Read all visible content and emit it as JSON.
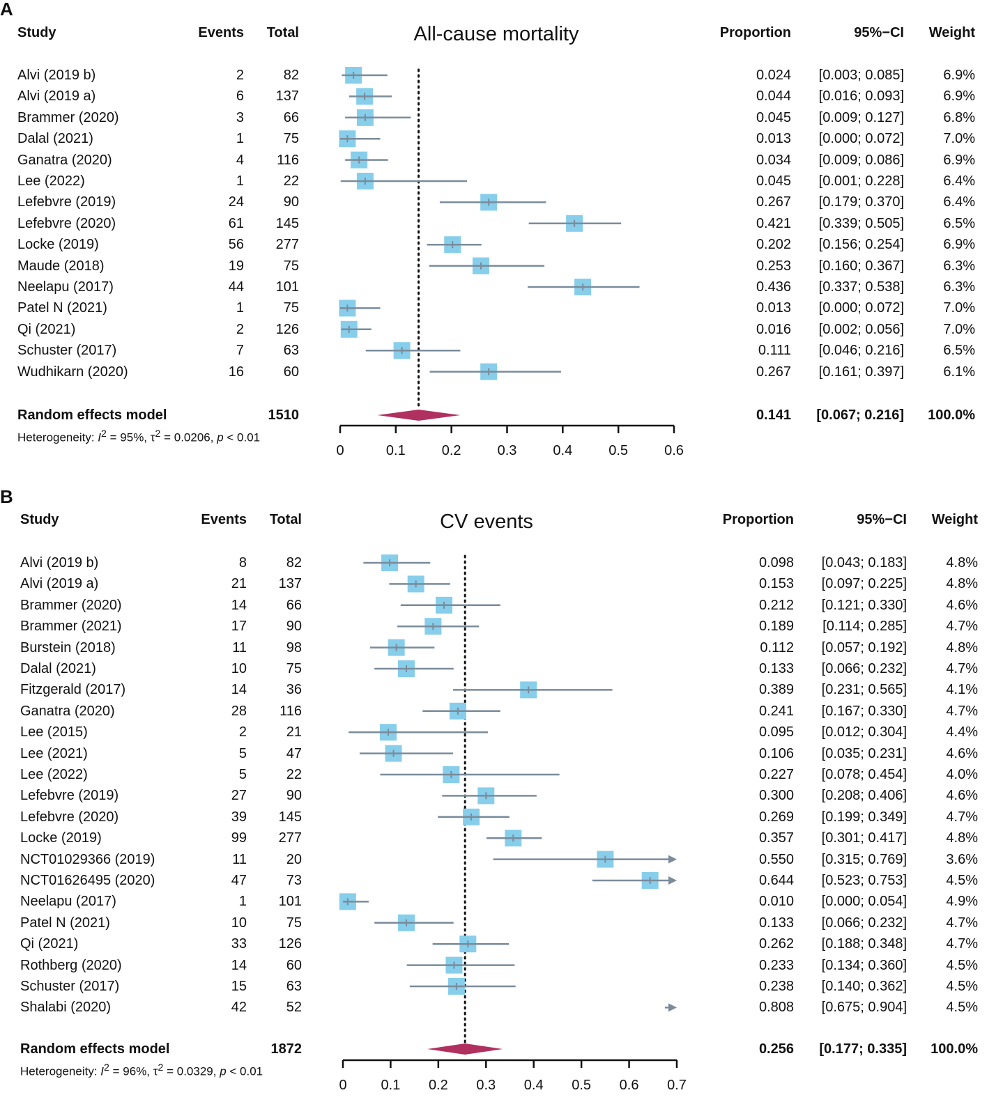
{
  "chart_data": [
    {
      "panel_label": "A",
      "type": "forest",
      "title": "All-cause mortality",
      "headers": {
        "study": "Study",
        "events": "Events",
        "total": "Total",
        "proportion": "Proportion",
        "ci": "95%−CI",
        "weight": "Weight"
      },
      "xlim": [
        0,
        0.6
      ],
      "ticks": [
        0,
        0.1,
        0.2,
        0.3,
        0.4,
        0.5,
        0.6
      ],
      "tick_labels": [
        "0",
        "0.1",
        "0.2",
        "0.3",
        "0.4",
        "0.5",
        "0.6"
      ],
      "studies": [
        {
          "name": "Alvi (2019 b)",
          "events": "2",
          "total": "82",
          "proportion": 0.024,
          "lower": 0.003,
          "upper": 0.085,
          "prop_text": "0.024",
          "ci_text": "[0.003; 0.085]",
          "weight": "6.9%"
        },
        {
          "name": "Alvi (2019 a)",
          "events": "6",
          "total": "137",
          "proportion": 0.044,
          "lower": 0.016,
          "upper": 0.093,
          "prop_text": "0.044",
          "ci_text": "[0.016; 0.093]",
          "weight": "6.9%"
        },
        {
          "name": "Brammer (2020)",
          "events": "3",
          "total": "66",
          "proportion": 0.045,
          "lower": 0.009,
          "upper": 0.127,
          "prop_text": "0.045",
          "ci_text": "[0.009; 0.127]",
          "weight": "6.8%"
        },
        {
          "name": "Dalal (2021)",
          "events": "1",
          "total": "75",
          "proportion": 0.013,
          "lower": 0.0,
          "upper": 0.072,
          "prop_text": "0.013",
          "ci_text": "[0.000; 0.072]",
          "weight": "7.0%"
        },
        {
          "name": "Ganatra (2020)",
          "events": "4",
          "total": "116",
          "proportion": 0.034,
          "lower": 0.009,
          "upper": 0.086,
          "prop_text": "0.034",
          "ci_text": "[0.009; 0.086]",
          "weight": "6.9%"
        },
        {
          "name": "Lee (2022)",
          "events": "1",
          "total": "22",
          "proportion": 0.045,
          "lower": 0.001,
          "upper": 0.228,
          "prop_text": "0.045",
          "ci_text": "[0.001; 0.228]",
          "weight": "6.4%"
        },
        {
          "name": "Lefebvre (2019)",
          "events": "24",
          "total": "90",
          "proportion": 0.267,
          "lower": 0.179,
          "upper": 0.37,
          "prop_text": "0.267",
          "ci_text": "[0.179; 0.370]",
          "weight": "6.4%"
        },
        {
          "name": "Lefebvre (2020)",
          "events": "61",
          "total": "145",
          "proportion": 0.421,
          "lower": 0.339,
          "upper": 0.505,
          "prop_text": "0.421",
          "ci_text": "[0.339; 0.505]",
          "weight": "6.5%"
        },
        {
          "name": "Locke (2019)",
          "events": "56",
          "total": "277",
          "proportion": 0.202,
          "lower": 0.156,
          "upper": 0.254,
          "prop_text": "0.202",
          "ci_text": "[0.156; 0.254]",
          "weight": "6.9%"
        },
        {
          "name": "Maude (2018)",
          "events": "19",
          "total": "75",
          "proportion": 0.253,
          "lower": 0.16,
          "upper": 0.367,
          "prop_text": "0.253",
          "ci_text": "[0.160; 0.367]",
          "weight": "6.3%"
        },
        {
          "name": "Neelapu (2017)",
          "events": "44",
          "total": "101",
          "proportion": 0.436,
          "lower": 0.337,
          "upper": 0.538,
          "prop_text": "0.436",
          "ci_text": "[0.337; 0.538]",
          "weight": "6.3%"
        },
        {
          "name": "Patel N (2021)",
          "events": "1",
          "total": "75",
          "proportion": 0.013,
          "lower": 0.0,
          "upper": 0.072,
          "prop_text": "0.013",
          "ci_text": "[0.000; 0.072]",
          "weight": "7.0%"
        },
        {
          "name": "Qi (2021)",
          "events": "2",
          "total": "126",
          "proportion": 0.016,
          "lower": 0.002,
          "upper": 0.056,
          "prop_text": "0.016",
          "ci_text": "[0.002; 0.056]",
          "weight": "7.0%"
        },
        {
          "name": "Schuster (2017)",
          "events": "7",
          "total": "63",
          "proportion": 0.111,
          "lower": 0.046,
          "upper": 0.216,
          "prop_text": "0.111",
          "ci_text": "[0.046; 0.216]",
          "weight": "6.5%"
        },
        {
          "name": "Wudhikarn (2020)",
          "events": "16",
          "total": "60",
          "proportion": 0.267,
          "lower": 0.161,
          "upper": 0.397,
          "prop_text": "0.267",
          "ci_text": "[0.161; 0.397]",
          "weight": "6.1%"
        }
      ],
      "pooled": {
        "name": "Random effects model",
        "total": "1510",
        "proportion": 0.141,
        "lower": 0.067,
        "upper": 0.216,
        "prop_text": "0.141",
        "ci_text": "[0.067; 0.216]",
        "weight": "100.0%"
      },
      "heterogeneity": {
        "prefix": "Heterogeneity: ",
        "i2_label": "I",
        "i2_value": " = 95%, ",
        "tau_label": "τ",
        "tau_value": " = 0.0206, ",
        "p_label": "p",
        "p_value": " < 0.01",
        "sup": "2"
      }
    },
    {
      "panel_label": "B",
      "type": "forest",
      "title": "CV events",
      "headers": {
        "study": "Study",
        "events": "Events",
        "total": "Total",
        "proportion": "Proportion",
        "ci": "95%−CI",
        "weight": "Weight"
      },
      "xlim": [
        0,
        0.7
      ],
      "ticks": [
        0,
        0.1,
        0.2,
        0.3,
        0.4,
        0.5,
        0.6,
        0.7
      ],
      "tick_labels": [
        "0",
        "0.1",
        "0.2",
        "0.3",
        "0.4",
        "0.5",
        "0.6",
        "0.7"
      ],
      "studies": [
        {
          "name": "Alvi (2019 b)",
          "events": "8",
          "total": "82",
          "proportion": 0.098,
          "lower": 0.043,
          "upper": 0.183,
          "prop_text": "0.098",
          "ci_text": "[0.043; 0.183]",
          "weight": "4.8%"
        },
        {
          "name": "Alvi (2019 a)",
          "events": "21",
          "total": "137",
          "proportion": 0.153,
          "lower": 0.097,
          "upper": 0.225,
          "prop_text": "0.153",
          "ci_text": "[0.097; 0.225]",
          "weight": "4.8%"
        },
        {
          "name": "Brammer (2020)",
          "events": "14",
          "total": "66",
          "proportion": 0.212,
          "lower": 0.121,
          "upper": 0.33,
          "prop_text": "0.212",
          "ci_text": "[0.121; 0.330]",
          "weight": "4.6%"
        },
        {
          "name": "Brammer (2021)",
          "events": "17",
          "total": "90",
          "proportion": 0.189,
          "lower": 0.114,
          "upper": 0.285,
          "prop_text": "0.189",
          "ci_text": "[0.114; 0.285]",
          "weight": "4.7%"
        },
        {
          "name": "Burstein (2018)",
          "events": "11",
          "total": "98",
          "proportion": 0.112,
          "lower": 0.057,
          "upper": 0.192,
          "prop_text": "0.112",
          "ci_text": "[0.057; 0.192]",
          "weight": "4.8%"
        },
        {
          "name": "Dalal (2021)",
          "events": "10",
          "total": "75",
          "proportion": 0.133,
          "lower": 0.066,
          "upper": 0.232,
          "prop_text": "0.133",
          "ci_text": "[0.066; 0.232]",
          "weight": "4.7%"
        },
        {
          "name": "Fitzgerald (2017)",
          "events": "14",
          "total": "36",
          "proportion": 0.389,
          "lower": 0.231,
          "upper": 0.565,
          "prop_text": "0.389",
          "ci_text": "[0.231; 0.565]",
          "weight": "4.1%"
        },
        {
          "name": "Ganatra (2020)",
          "events": "28",
          "total": "116",
          "proportion": 0.241,
          "lower": 0.167,
          "upper": 0.33,
          "prop_text": "0.241",
          "ci_text": "[0.167; 0.330]",
          "weight": "4.7%"
        },
        {
          "name": "Lee (2015)",
          "events": "2",
          "total": "21",
          "proportion": 0.095,
          "lower": 0.012,
          "upper": 0.304,
          "prop_text": "0.095",
          "ci_text": "[0.012; 0.304]",
          "weight": "4.4%"
        },
        {
          "name": "Lee (2021)",
          "events": "5",
          "total": "47",
          "proportion": 0.106,
          "lower": 0.035,
          "upper": 0.231,
          "prop_text": "0.106",
          "ci_text": "[0.035; 0.231]",
          "weight": "4.6%"
        },
        {
          "name": "Lee (2022)",
          "events": "5",
          "total": "22",
          "proportion": 0.227,
          "lower": 0.078,
          "upper": 0.454,
          "prop_text": "0.227",
          "ci_text": "[0.078; 0.454]",
          "weight": "4.0%"
        },
        {
          "name": "Lefebvre (2019)",
          "events": "27",
          "total": "90",
          "proportion": 0.3,
          "lower": 0.208,
          "upper": 0.406,
          "prop_text": "0.300",
          "ci_text": "[0.208; 0.406]",
          "weight": "4.6%"
        },
        {
          "name": "Lefebvre (2020)",
          "events": "39",
          "total": "145",
          "proportion": 0.269,
          "lower": 0.199,
          "upper": 0.349,
          "prop_text": "0.269",
          "ci_text": "[0.199; 0.349]",
          "weight": "4.7%"
        },
        {
          "name": "Locke (2019)",
          "events": "99",
          "total": "277",
          "proportion": 0.357,
          "lower": 0.301,
          "upper": 0.417,
          "prop_text": "0.357",
          "ci_text": "[0.301; 0.417]",
          "weight": "4.8%"
        },
        {
          "name": "NCT01029366 (2019)",
          "events": "11",
          "total": "20",
          "proportion": 0.55,
          "lower": 0.315,
          "upper": 0.769,
          "prop_text": "0.550",
          "ci_text": "[0.315; 0.769]",
          "weight": "3.6%"
        },
        {
          "name": "NCT01626495 (2020)",
          "events": "47",
          "total": "73",
          "proportion": 0.644,
          "lower": 0.523,
          "upper": 0.753,
          "prop_text": "0.644",
          "ci_text": "[0.523; 0.753]",
          "weight": "4.5%"
        },
        {
          "name": "Neelapu (2017)",
          "events": "1",
          "total": "101",
          "proportion": 0.01,
          "lower": 0.0,
          "upper": 0.054,
          "prop_text": "0.010",
          "ci_text": "[0.000; 0.054]",
          "weight": "4.9%"
        },
        {
          "name": "Patel N (2021)",
          "events": "10",
          "total": "75",
          "proportion": 0.133,
          "lower": 0.066,
          "upper": 0.232,
          "prop_text": "0.133",
          "ci_text": "[0.066; 0.232]",
          "weight": "4.7%"
        },
        {
          "name": "Qi (2021)",
          "events": "33",
          "total": "126",
          "proportion": 0.262,
          "lower": 0.188,
          "upper": 0.348,
          "prop_text": "0.262",
          "ci_text": "[0.188; 0.348]",
          "weight": "4.7%"
        },
        {
          "name": "Rothberg (2020)",
          "events": "14",
          "total": "60",
          "proportion": 0.233,
          "lower": 0.134,
          "upper": 0.36,
          "prop_text": "0.233",
          "ci_text": "[0.134; 0.360]",
          "weight": "4.5%"
        },
        {
          "name": "Schuster (2017)",
          "events": "15",
          "total": "63",
          "proportion": 0.238,
          "lower": 0.14,
          "upper": 0.362,
          "prop_text": "0.238",
          "ci_text": "[0.140; 0.362]",
          "weight": "4.5%"
        },
        {
          "name": "Shalabi (2020)",
          "events": "42",
          "total": "52",
          "proportion": 0.808,
          "lower": 0.675,
          "upper": 0.904,
          "prop_text": "0.808",
          "ci_text": "[0.675; 0.904]",
          "weight": "4.5%"
        }
      ],
      "pooled": {
        "name": "Random effects model",
        "total": "1872",
        "proportion": 0.256,
        "lower": 0.177,
        "upper": 0.335,
        "prop_text": "0.256",
        "ci_text": "[0.177; 0.335]",
        "weight": "100.0%"
      },
      "heterogeneity": {
        "prefix": "Heterogeneity: ",
        "i2_label": "I",
        "i2_value": " = 96%, ",
        "tau_label": "τ",
        "tau_value": " = 0.0329, ",
        "p_label": "p",
        "p_value": " < 0.01",
        "sup": "2"
      }
    }
  ],
  "colors": {
    "square": "#87CEEB",
    "ci_line": "#7A8B9B",
    "diamond": "#B03060",
    "text": "#111111"
  }
}
